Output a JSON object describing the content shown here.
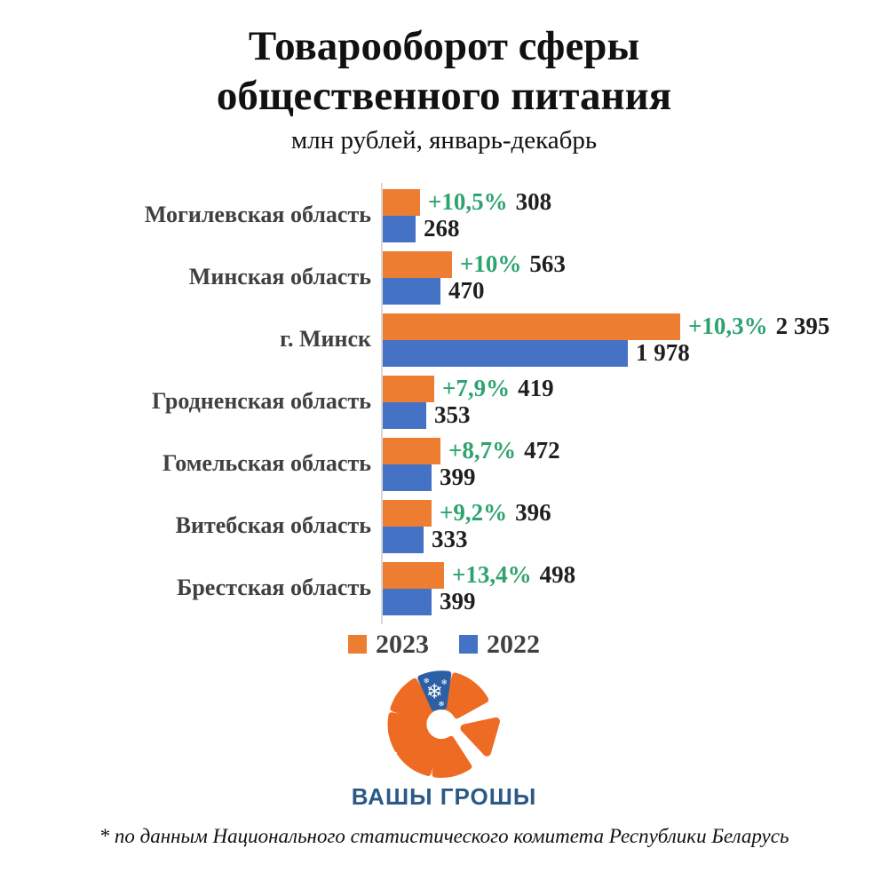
{
  "title": {
    "line1": "Товарооборот сферы",
    "line2": "общественного питания",
    "subtitle": "млн рублей, январь-декабрь"
  },
  "chart_data": {
    "type": "bar",
    "orientation": "horizontal",
    "unit": "млн рублей",
    "period": "январь-декабрь",
    "max_value": 2395,
    "series": [
      {
        "name": "2023",
        "color": "#ED7D31"
      },
      {
        "name": "2022",
        "color": "#4472C4"
      }
    ],
    "rows": [
      {
        "region": "Могилевская область",
        "growth": "+10,5%",
        "v2023": 308,
        "label2023": "308",
        "v2022": 268,
        "label2022": "268"
      },
      {
        "region": "Минская область",
        "growth": "+10%",
        "v2023": 563,
        "label2023": "563",
        "v2022": 470,
        "label2022": "470"
      },
      {
        "region": "г. Минск",
        "growth": "+10,3%",
        "v2023": 2395,
        "label2023": "2 395",
        "v2022": 1978,
        "label2022": "1 978"
      },
      {
        "region": "Гродненская область",
        "growth": "+7,9%",
        "v2023": 419,
        "label2023": "419",
        "v2022": 353,
        "label2022": "353"
      },
      {
        "region": "Гомельская область",
        "growth": "+8,7%",
        "v2023": 472,
        "label2023": "472",
        "v2022": 399,
        "label2022": "399"
      },
      {
        "region": "Витебская область",
        "growth": "+9,2%",
        "v2023": 396,
        "label2023": "396",
        "v2022": 333,
        "label2022": "333"
      },
      {
        "region": "Брестская область",
        "growth": "+13,4%",
        "v2023": 498,
        "label2023": "498",
        "v2022": 399,
        "label2022": "399"
      }
    ]
  },
  "legend": {
    "items": [
      {
        "label": "2023",
        "color": "#ED7D31"
      },
      {
        "label": "2022",
        "color": "#4472C4"
      }
    ]
  },
  "logo": {
    "text": "ВАШЫ ГРОШЫ",
    "orange": "#EE6B23",
    "blue": "#2D5FA5",
    "text_color": "#2B5A87"
  },
  "footer": {
    "note": "* по данным Национального статистического комитета Республики Беларусь"
  },
  "colors": {
    "bar_2023": "#ED7D31",
    "bar_2022": "#4472C4",
    "growth_green": "#2EA36E",
    "region_label_gray": "#404040",
    "axis_gray": "#D9D9D9"
  }
}
